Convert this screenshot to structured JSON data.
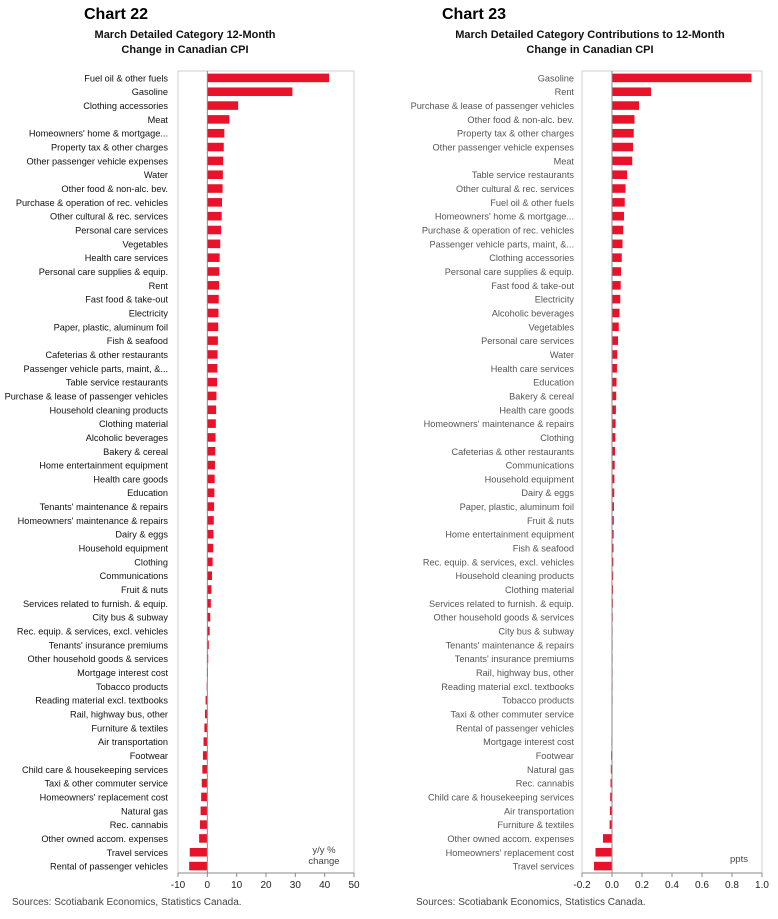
{
  "left": {
    "chart_number": "Chart 22",
    "title_line1": "March Detailed Category 12-Month",
    "title_line2": "Change in Canadian CPI",
    "source": "Sources: Scotiabank Economics, Statistics Canada.",
    "unit_label_line1": "y/y %",
    "unit_label_line2": "change"
  },
  "right": {
    "chart_number": "Chart 23",
    "title_line1": "March Detailed Category Contributions to 12-Month",
    "title_line2": "Change in Canadian CPI",
    "source": "Sources: Scotiabank Economics, Statistics Canada.",
    "unit_label": "ppts"
  },
  "colors": {
    "bar": "#e8132b",
    "axis": "#888888"
  },
  "chart_data": [
    {
      "type": "bar",
      "orientation": "horizontal",
      "xlim": [
        -10,
        50
      ],
      "xticks": [
        -10,
        0,
        10,
        20,
        30,
        40,
        50
      ],
      "categories": [
        "Fuel oil & other fuels",
        "Gasoline",
        "Clothing accessories",
        "Meat",
        "Homeowners' home & mortgage...",
        "Property tax & other charges",
        "Other passenger vehicle expenses",
        "Water",
        "Other food & non-alc. bev.",
        "Purchase & operation of rec. vehicles",
        "Other cultural & rec. services",
        "Personal care services",
        "Vegetables",
        "Health care services",
        "Personal care supplies & equip.",
        "Rent",
        "Fast food & take-out",
        "Electricity",
        "Paper, plastic, aluminum foil",
        "Fish & seafood",
        "Cafeterias & other restaurants",
        "Passenger vehicle parts, maint, &...",
        "Table service restaurants",
        "Purchase & lease of passenger vehicles",
        "Household cleaning products",
        "Clothing material",
        "Alcoholic beverages",
        "Bakery & cereal",
        "Home entertainment equipment",
        "Health care goods",
        "Education",
        "Tenants' maintenance & repairs",
        "Homeowners' maintenance & repairs",
        "Dairy & eggs",
        "Household equipment",
        "Clothing",
        "Communications",
        "Fruit & nuts",
        "Services related to furnish. & equip.",
        "City bus & subway",
        "Rec. equip. & services, excl. vehicles",
        "Tenants' insurance premiums",
        "Other household goods & services",
        "Mortgage interest cost",
        "Tobacco products",
        "Reading material excl. textbooks",
        "Rail, highway bus, other",
        "Furniture & textiles",
        "Air transportation",
        "Footwear",
        "Child care & housekeeping services",
        "Taxi & other commuter service",
        "Homeowners' replacement cost",
        "Natural gas",
        "Rec. cannabis",
        "Other owned accom. expenses",
        "Travel services",
        "Rental of passenger vehicles"
      ],
      "values": [
        41.5,
        29,
        10.5,
        7.5,
        5.8,
        5.6,
        5.4,
        5.3,
        5.2,
        5.0,
        4.9,
        4.7,
        4.4,
        4.2,
        4.1,
        4.0,
        3.9,
        3.8,
        3.7,
        3.6,
        3.5,
        3.4,
        3.3,
        3.1,
        3.0,
        2.9,
        2.8,
        2.7,
        2.6,
        2.5,
        2.4,
        2.3,
        2.2,
        2.1,
        2.0,
        1.8,
        1.6,
        1.4,
        1.2,
        1.0,
        0.8,
        0.5,
        0.3,
        0.1,
        -0.2,
        -0.6,
        -0.8,
        -1.0,
        -1.3,
        -1.5,
        -1.7,
        -1.9,
        -2.1,
        -2.3,
        -2.5,
        -2.8,
        -6.0,
        -6.2
      ]
    },
    {
      "type": "bar",
      "orientation": "horizontal",
      "xlim": [
        -0.2,
        1.0
      ],
      "xticks": [
        -0.2,
        0.0,
        0.2,
        0.4,
        0.6,
        0.8,
        1.0
      ],
      "categories": [
        "Gasoline",
        "Rent",
        "Purchase & lease of passenger vehicles",
        "Other food & non-alc. bev.",
        "Property tax & other charges",
        "Other passenger vehicle expenses",
        "Meat",
        "Table service restaurants",
        "Other cultural & rec. services",
        "Fuel oil & other fuels",
        "Homeowners' home & mortgage...",
        "Purchase & operation of rec. vehicles",
        "Passenger vehicle parts, maint, &...",
        "Clothing accessories",
        "Personal care supplies & equip.",
        "Fast food & take-out",
        "Electricity",
        "Alcoholic beverages",
        "Vegetables",
        "Personal care services",
        "Water",
        "Health care services",
        "Education",
        "Bakery & cereal",
        "Health care goods",
        "Homeowners' maintenance & repairs",
        "Clothing",
        "Cafeterias & other restaurants",
        "Communications",
        "Household equipment",
        "Dairy & eggs",
        "Paper, plastic, aluminum foil",
        "Fruit & nuts",
        "Home entertainment equipment",
        "Fish & seafood",
        "Rec. equip. & services, excl. vehicles",
        "Household cleaning products",
        "Clothing material",
        "Services related to furnish. & equip.",
        "Other household goods & services",
        "City bus & subway",
        "Tenants' maintenance & repairs",
        "Tenants' insurance premiums",
        "Rail, highway bus, other",
        "Reading material excl. textbooks",
        "Tobacco products",
        "Taxi & other commuter service",
        "Rental of passenger vehicles",
        "Mortgage interest cost",
        "Footwear",
        "Natural gas",
        "Rec. cannabis",
        "Child care & housekeeping services",
        "Air transportation",
        "Furniture & textiles",
        "Other owned accom. expenses",
        "Homeowners' replacement cost",
        "Travel services"
      ],
      "values": [
        0.93,
        0.26,
        0.18,
        0.15,
        0.145,
        0.14,
        0.135,
        0.1,
        0.09,
        0.085,
        0.08,
        0.075,
        0.07,
        0.065,
        0.06,
        0.058,
        0.055,
        0.05,
        0.045,
        0.04,
        0.035,
        0.033,
        0.03,
        0.028,
        0.026,
        0.024,
        0.022,
        0.02,
        0.018,
        0.016,
        0.015,
        0.013,
        0.012,
        0.011,
        0.01,
        0.009,
        0.008,
        0.007,
        0.006,
        0.005,
        0.004,
        0.003,
        0.002,
        0.001,
        0.001,
        0.0,
        -0.002,
        -0.003,
        -0.004,
        -0.006,
        -0.008,
        -0.01,
        -0.012,
        -0.014,
        -0.016,
        -0.06,
        -0.11,
        -0.12
      ]
    }
  ]
}
